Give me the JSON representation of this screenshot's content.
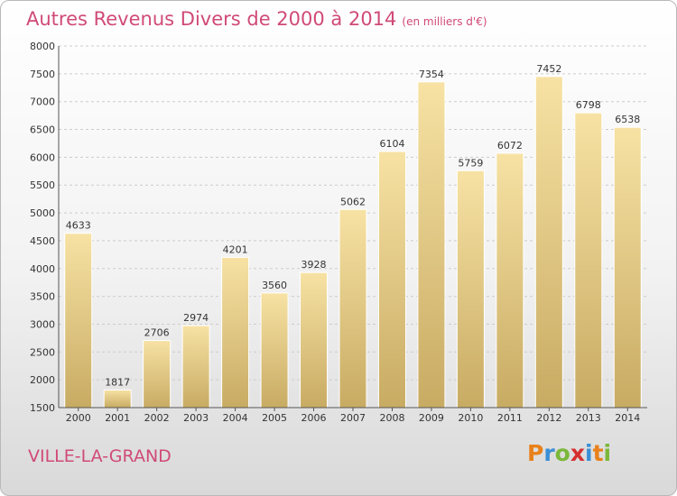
{
  "header": {
    "title": "Autres Revenus Divers de 2000 à 2014",
    "unit": "(en milliers d'€)"
  },
  "footer": {
    "location": "VILLE-LA-GRAND",
    "logo_text": "Proxiti",
    "logo_colors": [
      "#e8811c",
      "#3a8fd6",
      "#7bb83a",
      "#d62f2f",
      "#3a8fd6",
      "#e8811c",
      "#7bb83a"
    ]
  },
  "colors": {
    "title": "#d04a78",
    "bar_light": "#f7e2a4",
    "bar_dark": "#c8ab63",
    "grid": "#cccccc"
  },
  "chart_data": {
    "type": "bar",
    "title": "Autres Revenus Divers de 2000 à 2014",
    "subtitle": "(en milliers d'€)",
    "categories": [
      "2000",
      "2001",
      "2002",
      "2003",
      "2004",
      "2005",
      "2006",
      "2007",
      "2008",
      "2009",
      "2010",
      "2011",
      "2012",
      "2013",
      "2014"
    ],
    "values": [
      4633,
      1817,
      2706,
      2974,
      4201,
      3560,
      3928,
      5062,
      6104,
      7354,
      5759,
      6072,
      7452,
      6798,
      6538
    ],
    "ylim": [
      1500,
      8000
    ],
    "yticks": [
      1500,
      2000,
      2500,
      3000,
      3500,
      4000,
      4500,
      5000,
      5500,
      6000,
      6500,
      7000,
      7500,
      8000
    ],
    "grid": true,
    "xlabel": "",
    "ylabel": ""
  }
}
